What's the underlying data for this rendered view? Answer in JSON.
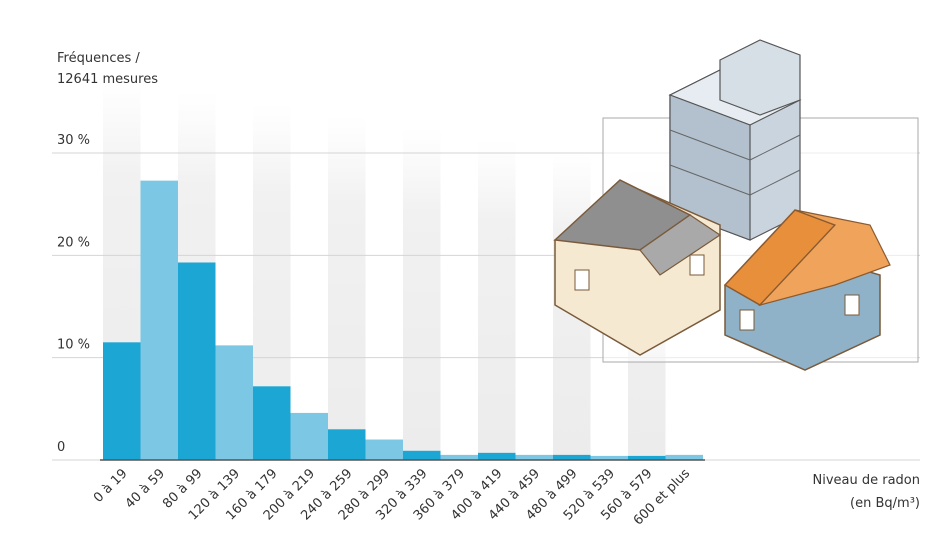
{
  "chart_data": {
    "type": "bar",
    "y_label": [
      "Fréquences /",
      "12641 mesures"
    ],
    "x_label": [
      "Niveau de radon",
      "(en Bq/m³)"
    ],
    "categories": [
      "0 à 19",
      "40 à 59",
      "80 à 99",
      "120 à 139",
      "160 à 179",
      "200 à 219",
      "240 à 259",
      "280 à 299",
      "320 à 339",
      "360 à 379",
      "400 à 419",
      "440 à 459",
      "480 à 499",
      "520 à 539",
      "560 à 579",
      "600 et plus"
    ],
    "values": [
      11.5,
      27.3,
      19.3,
      11.2,
      7.2,
      4.6,
      3.0,
      2.0,
      0.9,
      0.5,
      0.7,
      0.5,
      0.5,
      0.4,
      0.4,
      0.5
    ],
    "colors": [
      "#1ba6d3",
      "#7cc7e4",
      "#1ba6d3",
      "#7cc7e4",
      "#1ba6d3",
      "#7cc7e4",
      "#1ba6d3",
      "#7cc7e4",
      "#1ba6d3",
      "#7cc7e4",
      "#1ba6d3",
      "#7cc7e4",
      "#1ba6d3",
      "#7cc7e4",
      "#1ba6d3",
      "#7cc7e4"
    ],
    "ylim": [
      0,
      30
    ],
    "yticks": [
      0,
      {
        "value": 10,
        "label": "10 %"
      },
      {
        "value": 20,
        "label": "20 %"
      },
      {
        "value": 30,
        "label": "30 %"
      }
    ],
    "grid": true
  }
}
